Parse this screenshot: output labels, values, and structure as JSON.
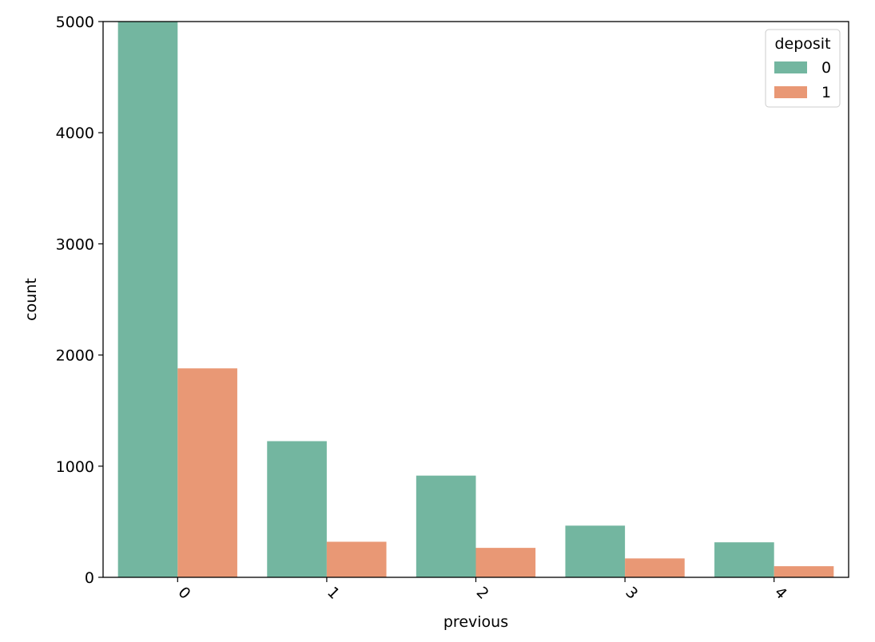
{
  "chart_data": {
    "type": "bar",
    "xlabel": "previous",
    "ylabel": "count",
    "categories": [
      "0",
      "1",
      "2",
      "3",
      "4"
    ],
    "ylim": [
      0,
      5000
    ],
    "yticks": [
      0,
      1000,
      2000,
      3000,
      4000,
      5000
    ],
    "x_tick_rotation_deg": 45,
    "grid": false,
    "legend": {
      "title": "deposit",
      "placement": "top-right"
    },
    "series": [
      {
        "name": "0",
        "color": "#73b6a0",
        "values": [
          5000,
          1225,
          915,
          465,
          315
        ]
      },
      {
        "name": "1",
        "color": "#e99875",
        "values": [
          1880,
          320,
          265,
          170,
          100
        ]
      }
    ]
  }
}
